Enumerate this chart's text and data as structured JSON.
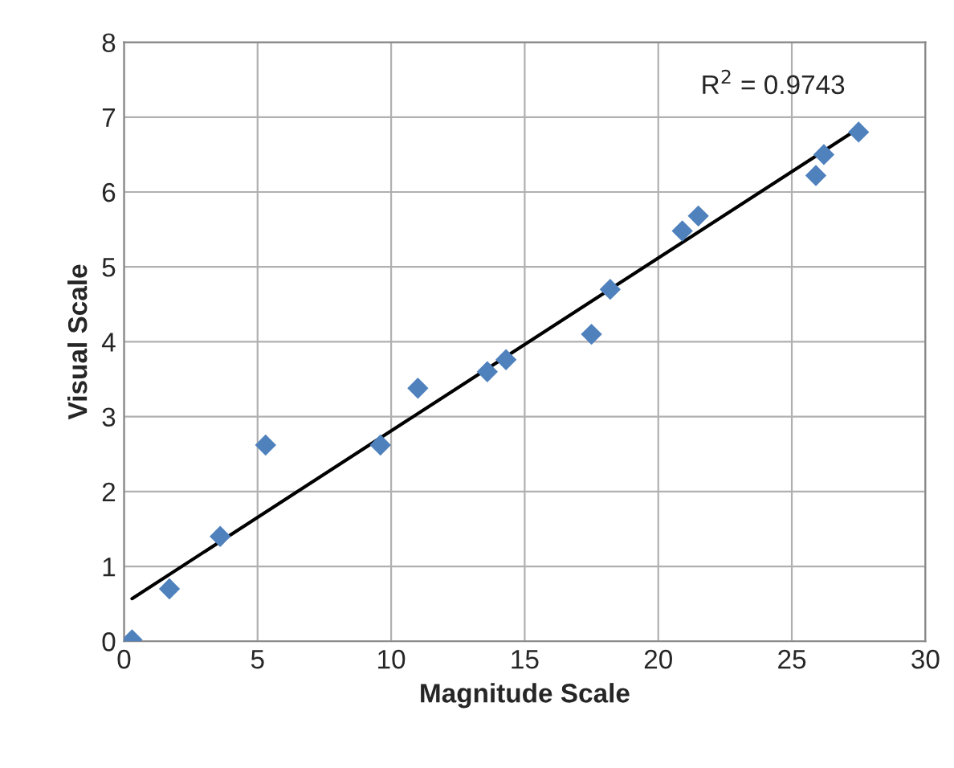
{
  "chart_data": {
    "type": "scatter",
    "xlabel": "Magnitude Scale",
    "ylabel": "Visual Scale",
    "annotations": [
      "R$^{2}$ = 0.9743"
    ],
    "xlim": [
      0,
      30
    ],
    "xticks": [
      0,
      5,
      10,
      15,
      20,
      25,
      30
    ],
    "ylim": [
      0,
      8
    ],
    "yticks": [
      0,
      1,
      2,
      3,
      4,
      5,
      6,
      7,
      8
    ],
    "grid": true,
    "series": [
      {
        "marker": "diamond",
        "color": "#4f81bd",
        "x": [
          0.3,
          1.7,
          3.6,
          5.3,
          9.6,
          11.0,
          13.6,
          14.3,
          17.5,
          18.2,
          20.9,
          21.5,
          25.9,
          26.2,
          27.5
        ],
        "values": [
          0.02,
          0.7,
          1.4,
          2.62,
          2.62,
          3.38,
          3.6,
          3.76,
          4.1,
          4.7,
          5.48,
          5.68,
          6.22,
          6.5,
          6.8
        ]
      },
      {
        "type": "line",
        "color": "#000000",
        "x": [
          0.3,
          27.2
        ],
        "values": [
          0.57,
          6.78
        ]
      }
    ]
  }
}
